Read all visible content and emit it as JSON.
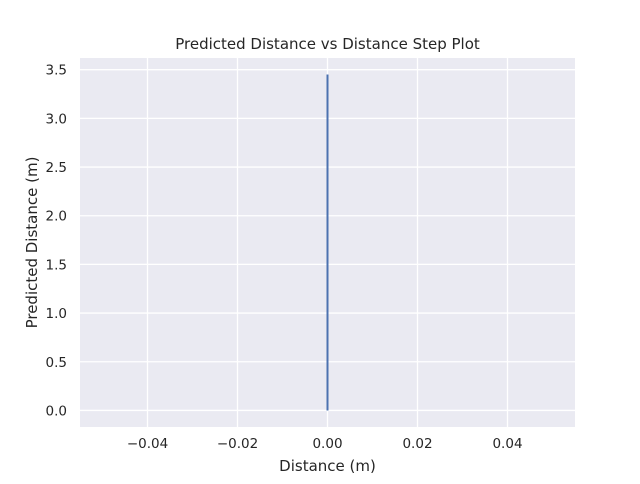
{
  "chart_data": {
    "type": "line",
    "title": "Predicted Distance vs Distance Step Plot",
    "xlabel": "Distance (m)",
    "ylabel": "Predicted Distance (m)",
    "xlim": [
      -0.055,
      0.055
    ],
    "ylim": [
      -0.17,
      3.62
    ],
    "x_ticks": [
      -0.04,
      -0.02,
      0.0,
      0.02,
      0.04
    ],
    "x_tick_labels": [
      "−0.04",
      "−0.02",
      "0.00",
      "0.02",
      "0.04"
    ],
    "y_ticks": [
      0.0,
      0.5,
      1.0,
      1.5,
      2.0,
      2.5,
      3.0,
      3.5
    ],
    "y_tick_labels": [
      "0.0",
      "0.5",
      "1.0",
      "1.5",
      "2.0",
      "2.5",
      "3.0",
      "3.5"
    ],
    "grid": true,
    "legend": false,
    "series": [
      {
        "color": "#4c72b0",
        "x": [
          0.0,
          0.0
        ],
        "y": [
          0.0,
          3.45
        ]
      }
    ],
    "colors": {
      "plot_background": "#eaeaf2",
      "grid": "#ffffff",
      "text": "#262626"
    }
  }
}
